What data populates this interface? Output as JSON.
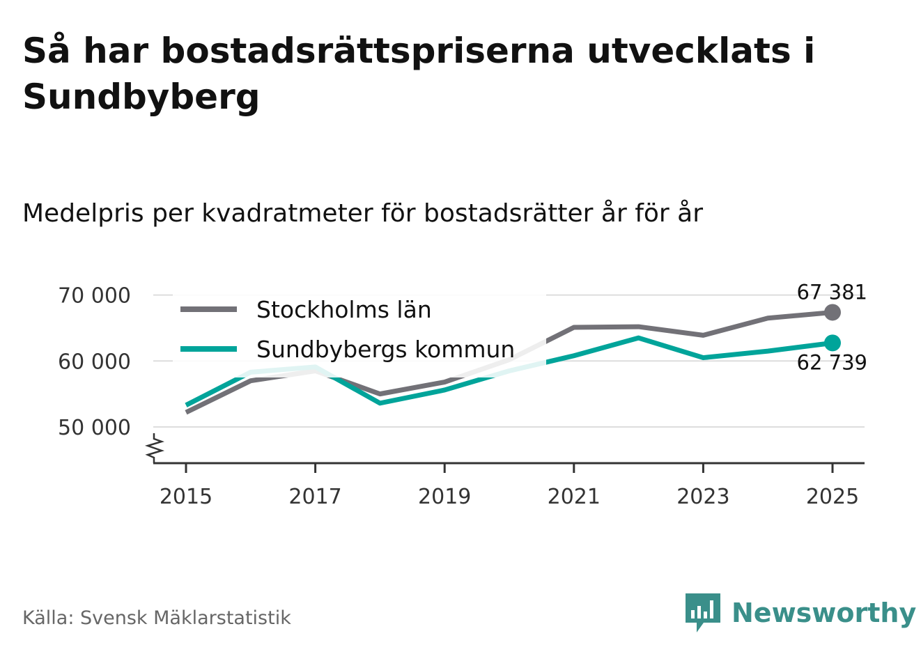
{
  "header": {
    "title": "Så har bostadsrättspriserna utvecklats i Sundbyberg",
    "subtitle": "Medelpris per kvadratmeter för bostadsrätter år för år"
  },
  "chart_data": {
    "type": "line",
    "title": "Så har bostadsrättspriserna utvecklats i Sundbyberg",
    "subtitle": "Medelpris per kvadratmeter för bostadsrätter år för år",
    "xlabel": "",
    "ylabel": "",
    "x": [
      2015,
      2016,
      2017,
      2018,
      2019,
      2020,
      2021,
      2022,
      2023,
      2024,
      2025
    ],
    "xticks": [
      2015,
      2017,
      2019,
      2021,
      2023,
      2025
    ],
    "xtick_labels": [
      "2015",
      "2017",
      "2019",
      "2021",
      "2023",
      "2025"
    ],
    "yticks": [
      50000,
      60000,
      70000
    ],
    "ytick_labels": [
      "50 000",
      "60 000",
      "70 000"
    ],
    "ylim": [
      44500,
      72500
    ],
    "axis_break": true,
    "grid": true,
    "legend_position": "top-left",
    "series": [
      {
        "name": "Stockholms län",
        "color": "#727177",
        "values": [
          52200,
          57000,
          58500,
          55000,
          56800,
          60200,
          65100,
          65200,
          63900,
          66500,
          67381
        ],
        "end_label": "67 381"
      },
      {
        "name": "Sundbybergs kommun",
        "color": "#00a49a",
        "values": [
          53300,
          58300,
          59100,
          53600,
          55600,
          58500,
          60800,
          63500,
          60500,
          61500,
          62739
        ],
        "end_label": "62 739"
      }
    ]
  },
  "footer": {
    "source": "Källa: Svensk Mäklarstatistik",
    "brand": "Newsworthy",
    "brand_color": "#3a8f8a"
  }
}
